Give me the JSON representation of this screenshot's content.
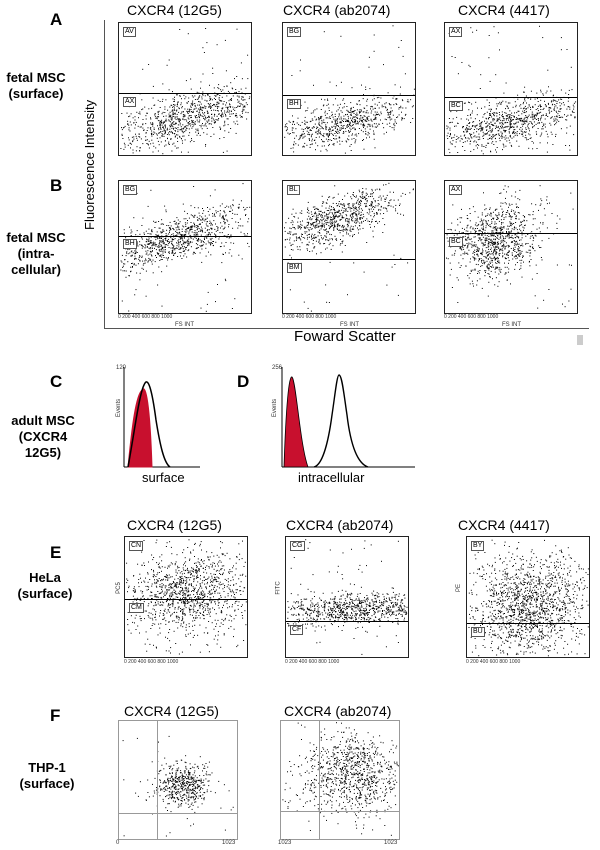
{
  "panels": {
    "A": "A",
    "B": "B",
    "C": "C",
    "D": "D",
    "E": "E",
    "F": "F"
  },
  "top": {
    "col_titles": [
      "CXCR4 (12G5)",
      "CXCR4 (ab2074)",
      "CXCR4 (4417)"
    ],
    "row_A_label": "fetal MSC\n(surface)",
    "row_B_label": "fetal MSC\n(intra-\ncellular)",
    "ylabel": "Fluorescence Intensity",
    "xlabel": "Foward Scatter",
    "x_ticks": "0   200   400   600   800   1000",
    "es_int": "FS INT",
    "gates_A": [
      [
        "AV",
        "AX"
      ],
      [
        "BG",
        "BH"
      ],
      [
        "AX",
        "BC"
      ]
    ],
    "gates_B": [
      [
        "BG",
        "BH"
      ],
      [
        "BL",
        "BM"
      ],
      [
        "AX",
        "BC"
      ]
    ]
  },
  "cd": {
    "row_label": "adult MSC\n(CXCR4 12G5)",
    "c_xlabel": "surface",
    "d_xlabel": "intracellular",
    "c_ymax": "120",
    "d_ymax": "256",
    "events": "Events"
  },
  "e": {
    "col_titles": [
      "CXCR4 (12G5)",
      "CXCR4 (ab2074)",
      "CXCR4 (4417)"
    ],
    "row_label": "HeLa\n(surface)",
    "ylabels": [
      "PC5",
      "FITC",
      "PE"
    ],
    "gates": [
      [
        "CN",
        "CM"
      ],
      [
        "CG",
        "CF"
      ],
      [
        "BY",
        "BU"
      ]
    ],
    "x_ticks": "0   200   400   600   800   1000"
  },
  "f": {
    "col_titles": [
      "CXCR4 (12G5)",
      "CXCR4 (ab2074)"
    ],
    "row_label": "THP-1\n(surface)",
    "x_ticks_left": "0",
    "x_ticks_right": "1023"
  },
  "colors": {
    "histogram_fill": "#c8102e",
    "dots": "#000000"
  }
}
